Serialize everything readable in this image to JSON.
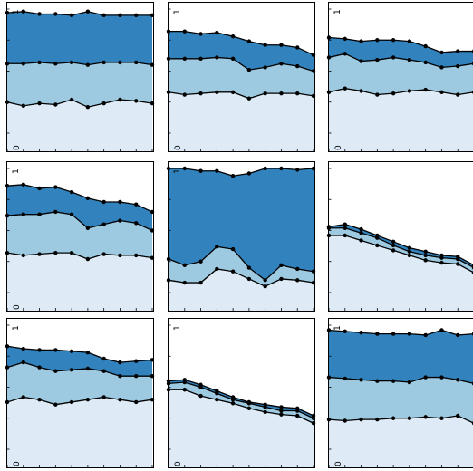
{
  "colors": {
    "band_low": "#deebf7",
    "band_mid": "#9ecae1",
    "band_high": "#3182bd",
    "line": "#000000",
    "marker": "#000000",
    "frame": "#000000"
  },
  "chart_data": [
    {
      "type": "area",
      "x": [
        1,
        2,
        3,
        4,
        5,
        6,
        7,
        8,
        9,
        10
      ],
      "ylim": [
        0,
        1
      ],
      "series": [
        {
          "values": [
            0.25,
            0.22,
            0.24,
            0.23,
            0.27,
            0.21,
            0.24,
            0.27,
            0.26,
            0.24
          ]
        },
        {
          "values": [
            0.56,
            0.56,
            0.57,
            0.56,
            0.57,
            0.55,
            0.57,
            0.57,
            0.57,
            0.55
          ]
        },
        {
          "values": [
            0.97,
            0.98,
            0.96,
            0.96,
            0.95,
            0.98,
            0.95,
            0.95,
            0.95,
            0.95
          ]
        }
      ],
      "tick_label": "1",
      "bottom_label": "0"
    },
    {
      "type": "area",
      "x": [
        1,
        2,
        3,
        4,
        5,
        6,
        7,
        8,
        9,
        10
      ],
      "ylim": [
        0,
        1
      ],
      "series": [
        {
          "values": [
            0.33,
            0.31,
            0.32,
            0.33,
            0.33,
            0.28,
            0.32,
            0.32,
            0.32,
            0.3
          ]
        },
        {
          "values": [
            0.6,
            0.6,
            0.6,
            0.61,
            0.6,
            0.51,
            0.53,
            0.56,
            0.54,
            0.5
          ]
        },
        {
          "values": [
            0.82,
            0.82,
            0.8,
            0.81,
            0.78,
            0.74,
            0.71,
            0.71,
            0.69,
            0.63
          ]
        }
      ],
      "tick_label": "1",
      "bottom_label": "0"
    },
    {
      "type": "area",
      "x": [
        1,
        2,
        3,
        4,
        5,
        6,
        7,
        8,
        9,
        10
      ],
      "ylim": [
        0,
        1
      ],
      "series": [
        {
          "values": [
            0.33,
            0.36,
            0.34,
            0.31,
            0.32,
            0.34,
            0.35,
            0.33,
            0.31,
            0.33
          ]
        },
        {
          "values": [
            0.61,
            0.64,
            0.58,
            0.59,
            0.61,
            0.59,
            0.57,
            0.53,
            0.54,
            0.56
          ]
        },
        {
          "values": [
            0.77,
            0.76,
            0.74,
            0.75,
            0.75,
            0.74,
            0.7,
            0.65,
            0.66,
            0.66
          ]
        }
      ],
      "tick_label": "1",
      "bottom_label": "0"
    },
    {
      "type": "area",
      "x": [
        1,
        2,
        3,
        4,
        5,
        6,
        7,
        8,
        9,
        10
      ],
      "ylim": [
        0,
        1
      ],
      "series": [
        {
          "values": [
            0.32,
            0.3,
            0.31,
            0.32,
            0.32,
            0.27,
            0.31,
            0.3,
            0.3,
            0.28
          ]
        },
        {
          "values": [
            0.62,
            0.63,
            0.63,
            0.65,
            0.63,
            0.52,
            0.55,
            0.58,
            0.56,
            0.5
          ]
        },
        {
          "values": [
            0.86,
            0.87,
            0.84,
            0.85,
            0.81,
            0.76,
            0.73,
            0.73,
            0.71,
            0.65
          ]
        }
      ],
      "tick_label": "1",
      "bottom_label": "0"
    },
    {
      "type": "area",
      "x": [
        1,
        2,
        3,
        4,
        5,
        6,
        7,
        8,
        9,
        10
      ],
      "ylim": [
        0,
        1
      ],
      "series": [
        {
          "values": [
            0.1,
            0.08,
            0.08,
            0.19,
            0.17,
            0.11,
            0.05,
            0.11,
            0.1,
            0.08
          ]
        },
        {
          "values": [
            0.27,
            0.22,
            0.25,
            0.37,
            0.35,
            0.2,
            0.1,
            0.22,
            0.19,
            0.17
          ]
        },
        {
          "values": [
            1.0,
            1.0,
            0.98,
            0.98,
            0.94,
            0.96,
            1.0,
            1.0,
            0.99,
            1.0
          ]
        }
      ],
      "tick_label": "1",
      "bottom_label": ""
    },
    {
      "type": "area",
      "x": [
        1,
        2,
        3,
        4,
        5,
        6,
        7,
        8,
        9,
        10
      ],
      "ylim": [
        0,
        1
      ],
      "series": [
        {
          "values": [
            0.46,
            0.46,
            0.42,
            0.38,
            0.34,
            0.3,
            0.26,
            0.24,
            0.23,
            0.16
          ]
        },
        {
          "values": [
            0.52,
            0.52,
            0.48,
            0.44,
            0.38,
            0.33,
            0.3,
            0.28,
            0.27,
            0.2
          ]
        },
        {
          "values": [
            0.53,
            0.55,
            0.51,
            0.46,
            0.41,
            0.36,
            0.33,
            0.3,
            0.29,
            0.22
          ]
        }
      ],
      "tick_label": "",
      "bottom_label": ""
    },
    {
      "type": "area",
      "x": [
        1,
        2,
        3,
        4,
        5,
        6,
        7,
        8,
        9,
        10
      ],
      "ylim": [
        0,
        1
      ],
      "series": [
        {
          "values": [
            0.38,
            0.42,
            0.4,
            0.36,
            0.38,
            0.4,
            0.42,
            0.4,
            0.38,
            0.4
          ]
        },
        {
          "values": [
            0.66,
            0.7,
            0.66,
            0.63,
            0.64,
            0.65,
            0.63,
            0.59,
            0.59,
            0.59
          ]
        },
        {
          "values": [
            0.83,
            0.81,
            0.8,
            0.8,
            0.79,
            0.78,
            0.73,
            0.7,
            0.71,
            0.72
          ]
        }
      ],
      "tick_label": "1",
      "bottom_label": "0"
    },
    {
      "type": "area",
      "x": [
        1,
        2,
        3,
        4,
        5,
        6,
        7,
        8,
        9,
        10
      ],
      "ylim": [
        0,
        1
      ],
      "series": [
        {
          "values": [
            0.48,
            0.48,
            0.43,
            0.4,
            0.37,
            0.33,
            0.3,
            0.28,
            0.27,
            0.21
          ]
        },
        {
          "values": [
            0.53,
            0.54,
            0.5,
            0.45,
            0.4,
            0.37,
            0.34,
            0.31,
            0.31,
            0.25
          ]
        },
        {
          "values": [
            0.55,
            0.56,
            0.52,
            0.47,
            0.42,
            0.38,
            0.36,
            0.34,
            0.33,
            0.27
          ]
        }
      ],
      "tick_label": "1",
      "bottom_label": "0"
    },
    {
      "type": "area",
      "x": [
        1,
        2,
        3,
        4,
        5,
        6,
        7,
        8,
        9,
        10
      ],
      "ylim": [
        0,
        1
      ],
      "series": [
        {
          "values": [
            0.24,
            0.23,
            0.24,
            0.24,
            0.25,
            0.25,
            0.26,
            0.25,
            0.27,
            0.21
          ]
        },
        {
          "values": [
            0.58,
            0.57,
            0.56,
            0.55,
            0.55,
            0.54,
            0.58,
            0.58,
            0.56,
            0.53
          ]
        },
        {
          "values": [
            0.96,
            0.95,
            0.94,
            0.93,
            0.93,
            0.93,
            0.92,
            0.96,
            0.92,
            0.93
          ]
        }
      ],
      "tick_label": "1",
      "bottom_label": "0"
    }
  ]
}
